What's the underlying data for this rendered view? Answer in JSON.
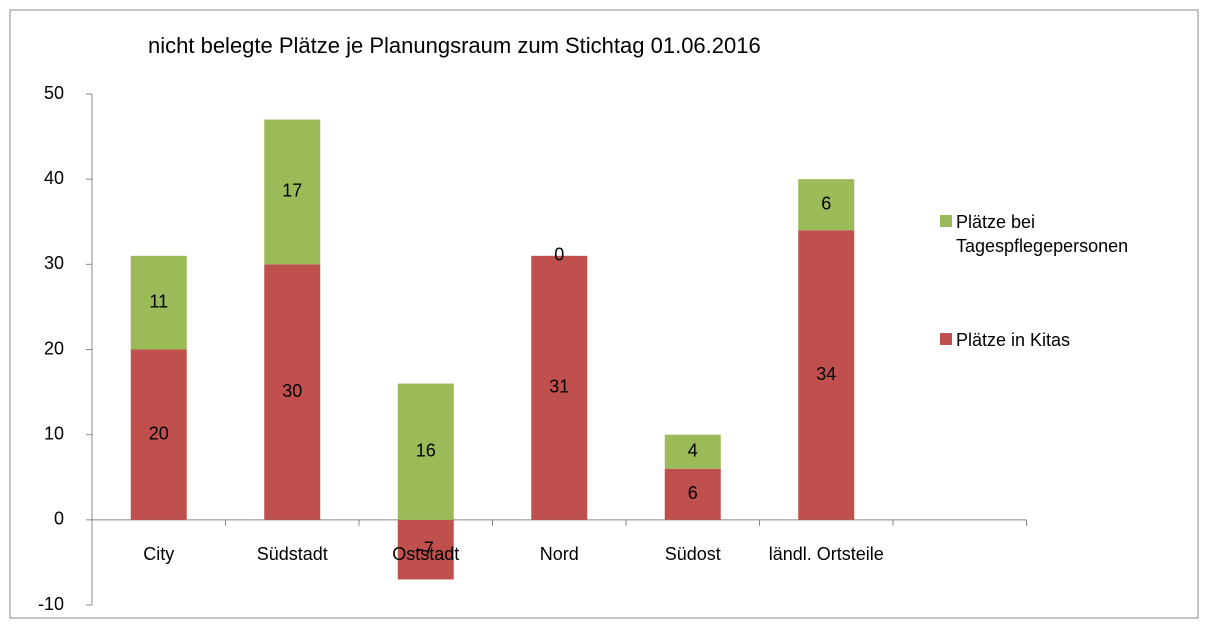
{
  "chart_data": {
    "type": "stacked_bar",
    "title": "nicht belegte Plätze je Planungsraum  zum Stichtag 01.06.2016",
    "categories": [
      "City",
      "Südstadt",
      "Oststadt",
      "Nord",
      "Südost",
      "ländl. Ortsteile",
      null
    ],
    "series": [
      {
        "name": "Plätze in Kitas",
        "color": "#c0504d",
        "values": [
          20,
          30,
          -7,
          31,
          6,
          34,
          null
        ]
      },
      {
        "name": "Plätze bei Tagespflegepersonen",
        "color": "#9bbb59",
        "values": [
          11,
          17,
          16,
          0,
          4,
          6,
          null
        ]
      }
    ],
    "ylim": [
      -10,
      50
    ],
    "yticks": [
      -10,
      0,
      10,
      20,
      30,
      40,
      50
    ],
    "grid": false,
    "legend": "right"
  }
}
